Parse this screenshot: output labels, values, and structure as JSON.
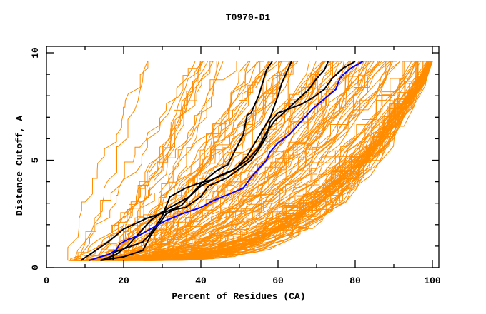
{
  "chart_data": {
    "type": "line",
    "title": "T0970-D1",
    "xlabel": "Percent of Residues (CA)",
    "ylabel": "Distance Cutoff, A",
    "xlim": [
      0,
      101.5
    ],
    "ylim": [
      0,
      10.3
    ],
    "x_ticks": [
      0,
      20,
      40,
      60,
      80,
      100
    ],
    "x_minor_ticks": [
      10,
      30,
      50,
      70,
      90
    ],
    "y_ticks": [
      0,
      5,
      10
    ],
    "y_minor_ticks": [
      1,
      2,
      3,
      4,
      6,
      7,
      8,
      9
    ],
    "grid": false,
    "legend": "none",
    "colors": {
      "background_models": "#ff8c00",
      "highlight_models": "#000000",
      "reference_model": "#0000ff",
      "axes": "#000000"
    },
    "background_model_count": 150,
    "background_model_envelope": {
      "x_min_at_bottom": 5.5,
      "x_max_at_top": 100,
      "y_min": 0.33,
      "y_max": 9.6
    },
    "series": [
      {
        "name": "highlight-1",
        "color": "#000000",
        "points": [
          [
            8.9,
            0.33
          ],
          [
            12,
            0.7
          ],
          [
            16,
            1.2
          ],
          [
            20,
            1.8
          ],
          [
            26,
            2.3
          ],
          [
            31,
            2.6
          ],
          [
            35,
            2.9
          ],
          [
            40,
            3.9
          ],
          [
            44,
            4.5
          ],
          [
            47,
            4.8
          ],
          [
            49,
            5.5
          ],
          [
            51,
            6.2
          ],
          [
            52,
            7.1
          ],
          [
            53,
            7.2
          ],
          [
            55,
            8.0
          ],
          [
            56,
            8.6
          ],
          [
            57,
            9.2
          ],
          [
            58.5,
            9.6
          ]
        ]
      },
      {
        "name": "highlight-2",
        "color": "#000000",
        "points": [
          [
            14,
            0.33
          ],
          [
            18,
            0.6
          ],
          [
            21,
            1.0
          ],
          [
            24,
            1.6
          ],
          [
            27,
            2.2
          ],
          [
            30,
            2.6
          ],
          [
            33,
            2.9
          ],
          [
            37,
            3.3
          ],
          [
            40,
            3.8
          ],
          [
            45,
            4.3
          ],
          [
            49,
            4.6
          ],
          [
            52,
            5.2
          ],
          [
            54,
            5.8
          ],
          [
            56,
            6.4
          ],
          [
            58,
            7.0
          ],
          [
            59,
            7.5
          ],
          [
            60,
            8.0
          ],
          [
            61,
            8.6
          ],
          [
            62,
            9.0
          ],
          [
            63.5,
            9.6
          ]
        ]
      },
      {
        "name": "highlight-3",
        "color": "#000000",
        "points": [
          [
            17.3,
            0.33
          ],
          [
            17.3,
            0.7
          ],
          [
            22,
            1.0
          ],
          [
            25,
            1.2
          ],
          [
            27,
            1.6
          ],
          [
            30,
            2.4
          ],
          [
            32,
            3.3
          ],
          [
            36,
            3.7
          ],
          [
            39,
            3.9
          ],
          [
            43,
            4.1
          ],
          [
            48,
            4.5
          ],
          [
            52,
            5.0
          ],
          [
            55,
            5.6
          ],
          [
            57,
            6.3
          ],
          [
            59,
            6.8
          ],
          [
            62,
            7.3
          ],
          [
            65,
            7.8
          ],
          [
            68,
            8.3
          ],
          [
            70,
            8.8
          ],
          [
            72,
            9.2
          ],
          [
            73,
            9.6
          ]
        ]
      },
      {
        "name": "highlight-4",
        "color": "#000000",
        "points": [
          [
            14,
            0.33
          ],
          [
            20,
            0.5
          ],
          [
            25,
            0.8
          ],
          [
            27,
            1.5
          ],
          [
            29,
            2.0
          ],
          [
            31,
            2.5
          ],
          [
            33,
            2.7
          ],
          [
            36,
            2.8
          ],
          [
            40,
            3.3
          ],
          [
            42,
            3.8
          ],
          [
            47,
            4.2
          ],
          [
            50,
            4.6
          ],
          [
            53,
            5.0
          ],
          [
            55,
            5.5
          ],
          [
            57,
            6.1
          ],
          [
            58,
            6.8
          ],
          [
            60,
            7.2
          ],
          [
            63,
            7.4
          ],
          [
            66,
            7.6
          ],
          [
            69,
            7.9
          ],
          [
            72,
            8.3
          ],
          [
            74,
            8.8
          ],
          [
            77,
            9.3
          ],
          [
            80,
            9.6
          ]
        ]
      },
      {
        "name": "reference",
        "color": "#0000ff",
        "points": [
          [
            11,
            0.33
          ],
          [
            14,
            0.5
          ],
          [
            16,
            0.6
          ],
          [
            18,
            0.8
          ],
          [
            19,
            1.1
          ],
          [
            21,
            1.3
          ],
          [
            24,
            1.5
          ],
          [
            27,
            1.8
          ],
          [
            31,
            2.2
          ],
          [
            35,
            2.5
          ],
          [
            40,
            2.8
          ],
          [
            43,
            3.1
          ],
          [
            47,
            3.4
          ],
          [
            51,
            3.7
          ],
          [
            53,
            4.2
          ],
          [
            55,
            4.6
          ],
          [
            57,
            5.0
          ],
          [
            58,
            5.4
          ],
          [
            60,
            5.8
          ],
          [
            63,
            6.2
          ],
          [
            65,
            6.6
          ],
          [
            67,
            7.0
          ],
          [
            69,
            7.4
          ],
          [
            71,
            7.7
          ],
          [
            73,
            8.0
          ],
          [
            75,
            8.3
          ],
          [
            76,
            8.8
          ],
          [
            77,
            9.0
          ],
          [
            79,
            9.3
          ],
          [
            82,
            9.6
          ]
        ]
      }
    ]
  }
}
